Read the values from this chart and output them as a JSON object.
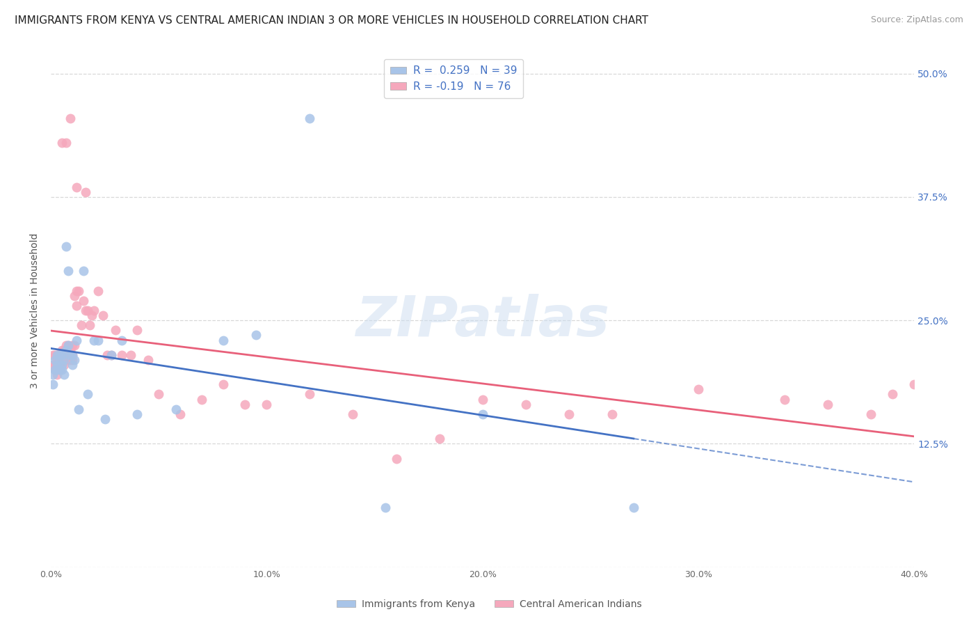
{
  "title": "IMMIGRANTS FROM KENYA VS CENTRAL AMERICAN INDIAN 3 OR MORE VEHICLES IN HOUSEHOLD CORRELATION CHART",
  "source": "Source: ZipAtlas.com",
  "ylabel_label": "3 or more Vehicles in Household",
  "legend_bottom": [
    "Immigrants from Kenya",
    "Central American Indians"
  ],
  "kenya_R": 0.259,
  "kenya_N": 39,
  "cai_R": -0.19,
  "cai_N": 76,
  "kenya_color": "#a8c4e8",
  "cai_color": "#f5a8bc",
  "kenya_line_color": "#4472c4",
  "cai_line_color": "#e8607a",
  "watermark": "ZIPatlas",
  "kenya_x": [
    0.001,
    0.001,
    0.002,
    0.002,
    0.003,
    0.003,
    0.003,
    0.004,
    0.004,
    0.005,
    0.005,
    0.005,
    0.006,
    0.006,
    0.007,
    0.007,
    0.008,
    0.008,
    0.009,
    0.01,
    0.01,
    0.011,
    0.012,
    0.013,
    0.015,
    0.017,
    0.02,
    0.022,
    0.025,
    0.028,
    0.033,
    0.04,
    0.058,
    0.08,
    0.095,
    0.12,
    0.155,
    0.2,
    0.27
  ],
  "kenya_y": [
    0.195,
    0.185,
    0.2,
    0.21,
    0.215,
    0.205,
    0.2,
    0.215,
    0.2,
    0.215,
    0.205,
    0.2,
    0.21,
    0.195,
    0.22,
    0.325,
    0.3,
    0.225,
    0.215,
    0.215,
    0.205,
    0.21,
    0.23,
    0.16,
    0.3,
    0.175,
    0.23,
    0.23,
    0.15,
    0.215,
    0.23,
    0.155,
    0.16,
    0.23,
    0.235,
    0.455,
    0.06,
    0.155,
    0.06
  ],
  "cai_x": [
    0.001,
    0.001,
    0.002,
    0.002,
    0.002,
    0.003,
    0.003,
    0.003,
    0.003,
    0.004,
    0.004,
    0.004,
    0.004,
    0.005,
    0.005,
    0.005,
    0.006,
    0.006,
    0.006,
    0.007,
    0.007,
    0.007,
    0.008,
    0.008,
    0.008,
    0.009,
    0.009,
    0.01,
    0.01,
    0.01,
    0.011,
    0.011,
    0.012,
    0.012,
    0.013,
    0.014,
    0.015,
    0.016,
    0.017,
    0.018,
    0.019,
    0.02,
    0.022,
    0.024,
    0.026,
    0.028,
    0.03,
    0.033,
    0.037,
    0.04,
    0.045,
    0.05,
    0.06,
    0.07,
    0.08,
    0.09,
    0.1,
    0.12,
    0.14,
    0.16,
    0.18,
    0.2,
    0.22,
    0.24,
    0.26,
    0.3,
    0.34,
    0.36,
    0.38,
    0.39,
    0.4,
    0.005,
    0.007,
    0.009,
    0.012,
    0.016
  ],
  "cai_y": [
    0.215,
    0.205,
    0.215,
    0.205,
    0.2,
    0.215,
    0.21,
    0.205,
    0.195,
    0.215,
    0.21,
    0.205,
    0.2,
    0.22,
    0.215,
    0.21,
    0.22,
    0.215,
    0.205,
    0.225,
    0.215,
    0.21,
    0.225,
    0.22,
    0.215,
    0.22,
    0.21,
    0.225,
    0.215,
    0.21,
    0.225,
    0.275,
    0.28,
    0.265,
    0.28,
    0.245,
    0.27,
    0.26,
    0.26,
    0.245,
    0.255,
    0.26,
    0.28,
    0.255,
    0.215,
    0.215,
    0.24,
    0.215,
    0.215,
    0.24,
    0.21,
    0.175,
    0.155,
    0.17,
    0.185,
    0.165,
    0.165,
    0.175,
    0.155,
    0.11,
    0.13,
    0.17,
    0.165,
    0.155,
    0.155,
    0.18,
    0.17,
    0.165,
    0.155,
    0.175,
    0.185,
    0.43,
    0.43,
    0.455,
    0.385,
    0.38
  ],
  "xlim": [
    0.0,
    0.4
  ],
  "ylim": [
    0.0,
    0.52
  ],
  "grid_color": "#d8d8d8",
  "background_color": "#ffffff",
  "title_fontsize": 11,
  "axis_label_fontsize": 10,
  "tick_fontsize": 9,
  "source_fontsize": 9
}
